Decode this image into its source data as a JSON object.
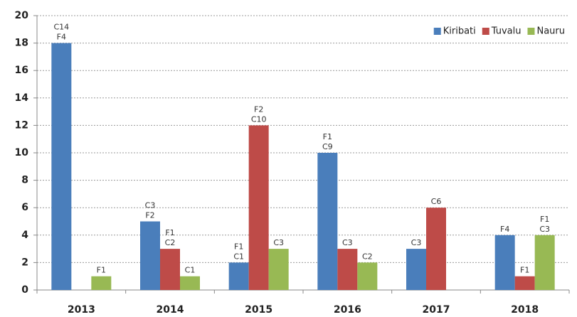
{
  "chart_data": {
    "type": "bar",
    "categories": [
      "2013",
      "2014",
      "2015",
      "2016",
      "2017",
      "2018"
    ],
    "series": [
      {
        "name": "Kiribati",
        "color": "#4a7ebb",
        "values": [
          18,
          5,
          2,
          10,
          3,
          4
        ],
        "value_labels": [
          [
            "C14",
            "F4"
          ],
          [
            "C3",
            "F2"
          ],
          [
            "F1",
            "C1"
          ],
          [
            "F1",
            "C9"
          ],
          [
            "C3"
          ],
          [
            "F4"
          ]
        ]
      },
      {
        "name": "Tuvalu",
        "color": "#be4b48",
        "values": [
          null,
          3,
          12,
          3,
          6,
          1
        ],
        "value_labels": [
          null,
          [
            "F1",
            "C2"
          ],
          [
            "F2",
            "C10"
          ],
          [
            "C3"
          ],
          [
            "C6"
          ],
          [
            "F1"
          ]
        ]
      },
      {
        "name": "Nauru",
        "color": "#98b954",
        "values": [
          1,
          1,
          3,
          2,
          null,
          4
        ],
        "value_labels": [
          [
            "F1"
          ],
          [
            "C1"
          ],
          [
            "C3"
          ],
          [
            "C2"
          ],
          null,
          [
            "F1",
            "C3"
          ]
        ]
      }
    ],
    "ylim": [
      0,
      20
    ],
    "yticks": [
      0,
      2,
      4,
      6,
      8,
      10,
      12,
      14,
      16,
      18,
      20
    ],
    "grid": true,
    "legend": "top-right"
  }
}
